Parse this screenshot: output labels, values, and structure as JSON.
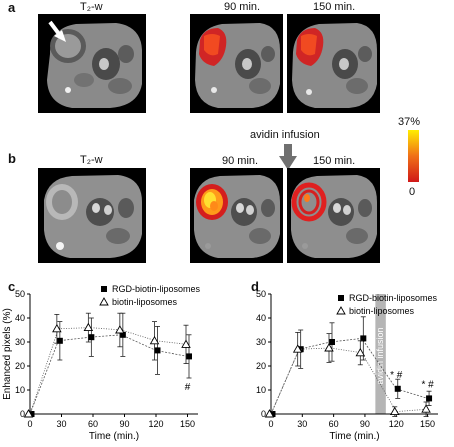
{
  "panels": {
    "a": {
      "letter": "a",
      "labels": [
        "T₂-w",
        "90 min.",
        "150 min."
      ]
    },
    "b": {
      "letter": "b",
      "labels": [
        "T₂-w",
        "90 min.",
        "150 min."
      ],
      "arrow_label": "avidin infusion"
    },
    "c": {
      "letter": "c"
    },
    "d": {
      "letter": "d",
      "band_label": "avidin infusion"
    }
  },
  "colorbar": {
    "max_label": "37%",
    "min_label": "0",
    "colors": [
      "#d01818",
      "#f07018",
      "#ffee00"
    ]
  },
  "colors": {
    "tumor_hot": "#e02020",
    "tumor_warm": "#ff9a1a",
    "tumor_yellow": "#ffe030",
    "band": "#b5b5b5"
  },
  "chart_data": [
    {
      "type": "line",
      "panel": "c",
      "xlabel": "Time (min.)",
      "ylabel": "Enhanced pixels (%)",
      "xlim": [
        0,
        160
      ],
      "ylim": [
        0,
        50
      ],
      "xticks": [
        0,
        30,
        60,
        90,
        120,
        150
      ],
      "yticks": [
        0,
        10,
        20,
        30,
        40,
        50
      ],
      "legend_position": "top-right",
      "series": [
        {
          "name": "RGD-biotin-liposomes",
          "marker": "square",
          "x": [
            0,
            27,
            57,
            87,
            120,
            150
          ],
          "y": [
            0,
            30.5,
            32,
            33,
            26.5,
            24
          ],
          "err": [
            0,
            8,
            8,
            9,
            10,
            9
          ]
        },
        {
          "name": "biotin-liposomes",
          "marker": "triangle",
          "x": [
            0,
            27,
            57,
            87,
            120,
            150
          ],
          "y": [
            0,
            35.5,
            36,
            35,
            30.5,
            29
          ],
          "err": [
            0,
            6,
            6,
            7,
            8,
            8
          ]
        }
      ],
      "annotations": [
        {
          "text": "#",
          "x": 150,
          "y": 10
        }
      ]
    },
    {
      "type": "line",
      "panel": "d",
      "xlabel": "Time (min.)",
      "ylabel": "",
      "xlim": [
        0,
        160
      ],
      "ylim": [
        0,
        50
      ],
      "xticks": [
        0,
        30,
        60,
        90,
        120,
        150
      ],
      "yticks": [
        0,
        10,
        20,
        30,
        40,
        50
      ],
      "legend_position": "top-right",
      "shaded_band": {
        "x": [
          100,
          110
        ],
        "label": "avidin infusion"
      },
      "series": [
        {
          "name": "RGD-biotin-liposomes",
          "marker": "square",
          "x": [
            0,
            27,
            57,
            87,
            120,
            150
          ],
          "y": [
            0,
            27,
            30,
            31.5,
            10.5,
            6.5
          ],
          "err": [
            0,
            8,
            8,
            9,
            4,
            3
          ]
        },
        {
          "name": "biotin-liposomes",
          "marker": "triangle",
          "x": [
            0,
            27,
            57,
            87,
            120,
            150
          ],
          "y": [
            0,
            27,
            27.5,
            25.5,
            1,
            2
          ],
          "err": [
            0,
            7,
            6,
            5,
            2,
            3
          ]
        }
      ],
      "annotations": [
        {
          "text": "* #",
          "x": 120,
          "y": 15
        },
        {
          "text": "* #",
          "x": 150,
          "y": 11
        }
      ]
    }
  ]
}
